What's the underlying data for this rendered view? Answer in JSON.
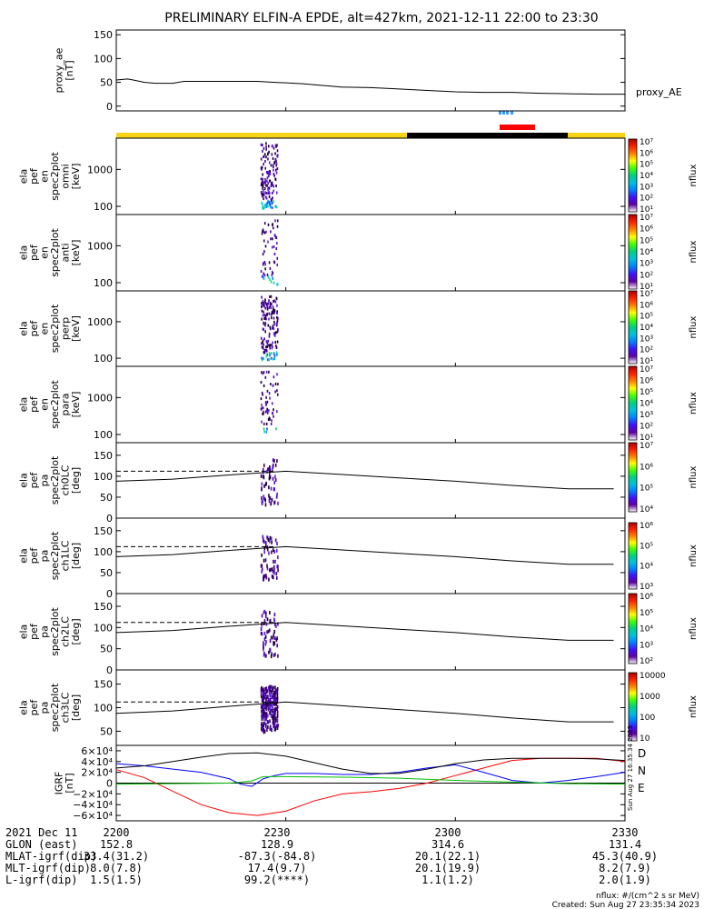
{
  "title": "PRELIMINARY ELFIN-A EPDE, alt=427km, 2021-12-11 22:00 to 23:30",
  "panels": [
    {
      "ylabel": [
        "proxy_ae",
        "[nT]"
      ],
      "yticks": [
        "150",
        "100",
        "50",
        "0"
      ],
      "legend": "proxy_AE"
    },
    {
      "ylabel": [
        "ela",
        "pef",
        "en",
        "spec2plot",
        "omni",
        "[keV]"
      ],
      "yticks": [
        "1000",
        "100"
      ],
      "cbar": [
        "10⁷",
        "10⁶",
        "10⁵",
        "10⁴",
        "10³",
        "10²",
        "10¹"
      ],
      "cbar_label": "nflux"
    },
    {
      "ylabel": [
        "ela",
        "pef",
        "en",
        "spec2plot",
        "anti",
        "[keV]"
      ],
      "yticks": [
        "1000",
        "100"
      ],
      "cbar": [
        "10⁷",
        "10⁶",
        "10⁵",
        "10⁴",
        "10³",
        "10²",
        "10¹"
      ],
      "cbar_label": "nflux"
    },
    {
      "ylabel": [
        "ela",
        "pef",
        "en",
        "spec2plot",
        "perp",
        "[keV]"
      ],
      "yticks": [
        "1000",
        "100"
      ],
      "cbar": [
        "10⁷",
        "10⁶",
        "10⁵",
        "10⁴",
        "10³",
        "10²",
        "10¹"
      ],
      "cbar_label": "nflux"
    },
    {
      "ylabel": [
        "ela",
        "pef",
        "en",
        "spec2plot",
        "para",
        "[keV]"
      ],
      "yticks": [
        "1000",
        "100"
      ],
      "cbar": [
        "10⁷",
        "10⁶",
        "10⁵",
        "10⁴",
        "10³",
        "10²",
        "10¹"
      ],
      "cbar_label": "nflux"
    },
    {
      "ylabel": [
        "ela",
        "pef",
        "pa",
        "spec2plot",
        "ch0LC",
        "[deg]"
      ],
      "yticks": [
        "150",
        "100",
        "50",
        "0"
      ],
      "cbar": [
        "10⁷",
        "10⁶",
        "10⁵",
        "10⁴"
      ],
      "cbar_label": "nflux"
    },
    {
      "ylabel": [
        "ela",
        "pef",
        "pa",
        "spec2plot",
        "ch1LC",
        "[deg]"
      ],
      "yticks": [
        "150",
        "100",
        "50",
        "0"
      ],
      "cbar": [
        "10⁶",
        "10⁵",
        "10⁴",
        "10³"
      ],
      "cbar_label": "nflux"
    },
    {
      "ylabel": [
        "ela",
        "pef",
        "pa",
        "spec2plot",
        "ch2LC",
        "[deg]"
      ],
      "yticks": [
        "150",
        "100",
        "50",
        "0"
      ],
      "cbar": [
        "10⁶",
        "10⁵",
        "10⁴",
        "10³",
        "10²"
      ],
      "cbar_label": "nflux"
    },
    {
      "ylabel": [
        "ela",
        "pef",
        "pa",
        "spec2plot",
        "ch3LC",
        "[deg]"
      ],
      "yticks": [
        "150",
        "100",
        "50"
      ],
      "cbar": [
        "10000",
        "1000",
        "100",
        "10"
      ],
      "cbar_label": "nflux"
    },
    {
      "ylabel": [
        "IGRF",
        "[nT]"
      ],
      "yticks": [
        "6×10⁴",
        "4×10⁴",
        "2×10⁴",
        "0",
        "−2×10⁴",
        "−4×10⁴",
        "−6×10⁴"
      ],
      "legend": [
        "D",
        "N",
        "E"
      ]
    }
  ],
  "colors": {
    "D": "#ff0000",
    "N": "#0000ff",
    "E": "#00c000",
    "sunlit": "#f7d417",
    "shadow": "#000000",
    "fgm": "#ff0000",
    "epd": "#3399ff"
  },
  "annotation_vertical": "Sun Aug 27 16:35:34 2023",
  "footer": {
    "rows": [
      [
        "2021 Dec 11",
        "2200",
        "2230",
        "2300",
        "2330"
      ],
      [
        "GLON (east)",
        "152.8",
        "128.9",
        "314.6",
        "131.4"
      ],
      [
        "MLAT-igrf(dip)",
        "33.4(31.2)",
        "-87.3(-84.8)",
        "20.1(22.1)",
        "45.3(40.9)"
      ],
      [
        "MLT-igrf(dip)",
        "8.0(7.8)",
        "17.4(9.7)",
        "20.1(19.9)",
        "8.2(7.9)"
      ],
      [
        "L-igrf(dip)",
        "1.5(1.5)",
        "99.2(****)",
        "1.1(1.2)",
        "2.0(1.9)"
      ]
    ],
    "units": "nflux: #/(cm^2 s sr MeV)",
    "created": "Created: Sun Aug 27 23:35:34 2023"
  },
  "chart_data": [
    {
      "type": "line",
      "title": "PRELIMINARY ELFIN-A EPDE, alt=427km, 2021-12-11 22:00 to 23:30",
      "ylabel": "proxy_ae [nT]",
      "ylim": [
        -10,
        160
      ],
      "xlim_minutes": [
        0,
        90
      ],
      "series": [
        {
          "name": "proxy_AE",
          "x": [
            0,
            2,
            3,
            5,
            7,
            10,
            12,
            14,
            18,
            22,
            25,
            28,
            30,
            33,
            36,
            38,
            40,
            45,
            50,
            55,
            60,
            65,
            70,
            75,
            80,
            85,
            90
          ],
          "y": [
            55,
            57,
            55,
            50,
            48,
            48,
            52,
            52,
            52,
            52,
            52,
            50,
            49,
            47,
            44,
            42,
            40,
            39,
            36,
            33,
            30,
            29,
            29,
            27,
            26,
            25,
            25
          ]
        }
      ]
    },
    {
      "type": "heatmap",
      "ylabel": "ela pef en spec2plot omni [keV]",
      "ylim": [
        60,
        7000
      ],
      "yscale": "log",
      "colorbar": "nflux 10^1-10^7",
      "active_minutes": [
        25.5,
        28.5
      ]
    },
    {
      "type": "heatmap",
      "ylabel": "ela pef en spec2plot anti [keV]",
      "ylim": [
        60,
        7000
      ],
      "yscale": "log",
      "active_minutes": [
        25.5,
        28.5
      ]
    },
    {
      "type": "heatmap",
      "ylabel": "ela pef en spec2plot perp [keV]",
      "ylim": [
        60,
        7000
      ],
      "yscale": "log",
      "active_minutes": [
        25.5,
        28.5
      ]
    },
    {
      "type": "heatmap",
      "ylabel": "ela pef en spec2plot para [keV]",
      "ylim": [
        60,
        7000
      ],
      "yscale": "log",
      "active_minutes": [
        25.5,
        28.5
      ]
    },
    {
      "type": "heatmap",
      "ylabel": "ela pef pa spec2plot ch0LC [deg]",
      "ylim": [
        0,
        180
      ],
      "loss_cone": {
        "x": [
          0,
          10,
          20,
          30,
          40,
          50,
          60,
          70,
          80,
          88
        ],
        "y": [
          88,
          93,
          103,
          112,
          104,
          96,
          88,
          78,
          70,
          70
        ]
      },
      "anti_loss_cone": 112
    },
    {
      "type": "heatmap",
      "ylabel": "ela pef pa spec2plot ch1LC [deg]",
      "ylim": [
        0,
        180
      ],
      "loss_cone": {
        "x": [
          0,
          10,
          20,
          30,
          40,
          50,
          60,
          70,
          80,
          88
        ],
        "y": [
          88,
          93,
          103,
          112,
          104,
          96,
          88,
          78,
          70,
          70
        ]
      },
      "anti_loss_cone": 112
    },
    {
      "type": "heatmap",
      "ylabel": "ela pef pa spec2plot ch2LC [deg]",
      "ylim": [
        0,
        180
      ],
      "loss_cone": {
        "x": [
          0,
          10,
          20,
          30,
          40,
          50,
          60,
          70,
          80,
          88
        ],
        "y": [
          88,
          93,
          103,
          112,
          104,
          96,
          88,
          78,
          70,
          70
        ]
      },
      "anti_loss_cone": 112
    },
    {
      "type": "heatmap",
      "ylabel": "ela pef pa spec2plot ch3LC [deg]",
      "ylim": [
        20,
        180
      ],
      "loss_cone": {
        "x": [
          0,
          10,
          20,
          30,
          40,
          50,
          60,
          70,
          80,
          88
        ],
        "y": [
          88,
          93,
          103,
          112,
          104,
          96,
          88,
          78,
          70,
          70
        ]
      },
      "anti_loss_cone": 112
    },
    {
      "type": "line",
      "ylabel": "IGRF [nT]",
      "ylim": [
        -70000,
        70000
      ],
      "series": [
        {
          "name": "D",
          "x": [
            0,
            5,
            10,
            15,
            20,
            25,
            30,
            35,
            40,
            45,
            50,
            55,
            60,
            65,
            70,
            75,
            80,
            85,
            90
          ],
          "y": [
            25000,
            10000,
            -15000,
            -40000,
            -55000,
            -60000,
            -52000,
            -33000,
            -20000,
            -16000,
            -10000,
            0,
            14000,
            28000,
            42000,
            46000,
            46000,
            46000,
            40000
          ]
        },
        {
          "name": "N",
          "x": [
            0,
            5,
            10,
            15,
            20,
            22,
            24,
            26,
            28,
            30,
            35,
            40,
            45,
            50,
            55,
            60,
            65,
            70,
            75,
            80,
            85,
            90
          ],
          "y": [
            36000,
            32000,
            26000,
            20000,
            8000,
            -2000,
            -6000,
            8000,
            14000,
            18000,
            18000,
            16000,
            16000,
            20000,
            28000,
            34000,
            20000,
            5000,
            0,
            5000,
            12000,
            20000
          ]
        },
        {
          "name": "E",
          "x": [
            0,
            10,
            20,
            22,
            24,
            26,
            30,
            40,
            50,
            60,
            70,
            80,
            90
          ],
          "y": [
            -2000,
            -1000,
            0,
            2000,
            4000,
            12000,
            12000,
            11000,
            9000,
            5000,
            2000,
            -1000,
            -2000
          ]
        },
        {
          "name": "",
          "x": [
            0,
            5,
            10,
            15,
            20,
            25,
            30,
            35,
            40,
            45,
            50,
            55,
            60,
            65,
            70,
            75,
            80,
            85,
            90
          ],
          "y": [
            28000,
            32000,
            40000,
            48000,
            55000,
            56000,
            50000,
            38000,
            26000,
            18000,
            18000,
            26000,
            36000,
            43000,
            46000,
            46000,
            46000,
            45000,
            42000
          ]
        }
      ]
    }
  ]
}
